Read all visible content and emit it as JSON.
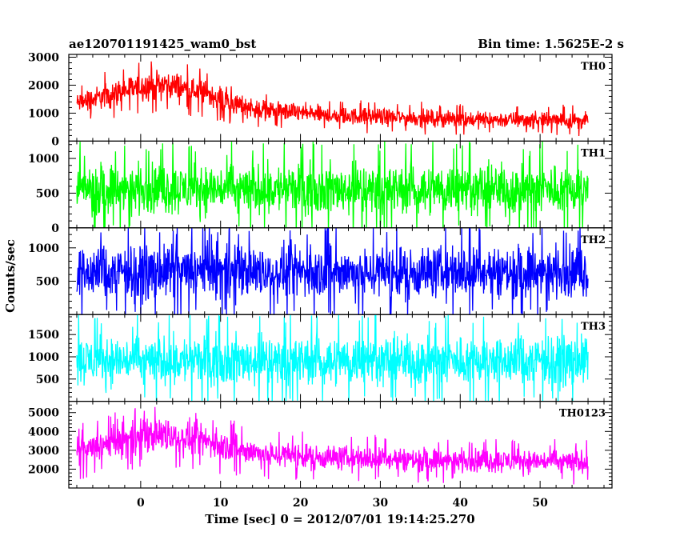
{
  "chart_data": {
    "type": "line",
    "title_left": "ae120701191425_wam0_bst",
    "title_right": "Bin time: 1.5625E-2 s",
    "xlabel": "Time [sec] 0 = 2012/07/01 19:14:25.270",
    "ylabel": "Counts/sec",
    "xlim": [
      -9,
      59
    ],
    "x_ticks": [
      0,
      10,
      20,
      30,
      40,
      50
    ],
    "x_data_range": [
      -8,
      56
    ],
    "grid": false,
    "panels": [
      {
        "name": "TH0",
        "color": "#ff0000",
        "ylim": [
          0,
          3100
        ],
        "y_ticks": [
          0,
          1000,
          2000,
          3000
        ],
        "envelope": [
          {
            "t": -8,
            "mean": 1350,
            "amp": 550
          },
          {
            "t": -4,
            "mean": 1650,
            "amp": 650
          },
          {
            "t": 0,
            "mean": 1950,
            "amp": 750
          },
          {
            "t": 3,
            "mean": 2050,
            "amp": 800
          },
          {
            "t": 6,
            "mean": 1850,
            "amp": 700
          },
          {
            "t": 9,
            "mean": 1650,
            "amp": 650
          },
          {
            "t": 12,
            "mean": 1300,
            "amp": 550
          },
          {
            "t": 16,
            "mean": 1100,
            "amp": 500
          },
          {
            "t": 25,
            "mean": 900,
            "amp": 450
          },
          {
            "t": 40,
            "mean": 780,
            "amp": 430
          },
          {
            "t": 56,
            "mean": 730,
            "amp": 420
          }
        ]
      },
      {
        "name": "TH1",
        "color": "#00ff00",
        "ylim": [
          0,
          1250
        ],
        "y_ticks": [
          0,
          500,
          1000
        ],
        "envelope": [
          {
            "t": -8,
            "mean": 560,
            "amp": 520
          },
          {
            "t": 56,
            "mean": 560,
            "amp": 520
          }
        ]
      },
      {
        "name": "TH2",
        "color": "#0000ff",
        "ylim": [
          0,
          1300
        ],
        "y_ticks": [
          500,
          1000
        ],
        "envelope": [
          {
            "t": -8,
            "mean": 640,
            "amp": 560
          },
          {
            "t": 56,
            "mean": 640,
            "amp": 560
          }
        ]
      },
      {
        "name": "TH3",
        "color": "#00ffff",
        "ylim": [
          0,
          1950
        ],
        "y_ticks": [
          500,
          1000,
          1500
        ],
        "envelope": [
          {
            "t": -8,
            "mean": 920,
            "amp": 800
          },
          {
            "t": 56,
            "mean": 920,
            "amp": 800
          }
        ]
      },
      {
        "name": "TH0123",
        "color": "#ff00ff",
        "ylim": [
          1000,
          5600
        ],
        "y_ticks": [
          2000,
          3000,
          4000,
          5000
        ],
        "envelope": [
          {
            "t": -8,
            "mean": 2900,
            "amp": 1100
          },
          {
            "t": -4,
            "mean": 3300,
            "amp": 1200
          },
          {
            "t": 0,
            "mean": 3700,
            "amp": 1350
          },
          {
            "t": 3,
            "mean": 3850,
            "amp": 1400
          },
          {
            "t": 6,
            "mean": 3650,
            "amp": 1300
          },
          {
            "t": 9,
            "mean": 3400,
            "amp": 1200
          },
          {
            "t": 12,
            "mean": 3050,
            "amp": 1100
          },
          {
            "t": 16,
            "mean": 2800,
            "amp": 1000
          },
          {
            "t": 25,
            "mean": 2600,
            "amp": 950
          },
          {
            "t": 40,
            "mean": 2450,
            "amp": 900
          },
          {
            "t": 56,
            "mean": 2400,
            "amp": 900
          }
        ]
      }
    ]
  }
}
